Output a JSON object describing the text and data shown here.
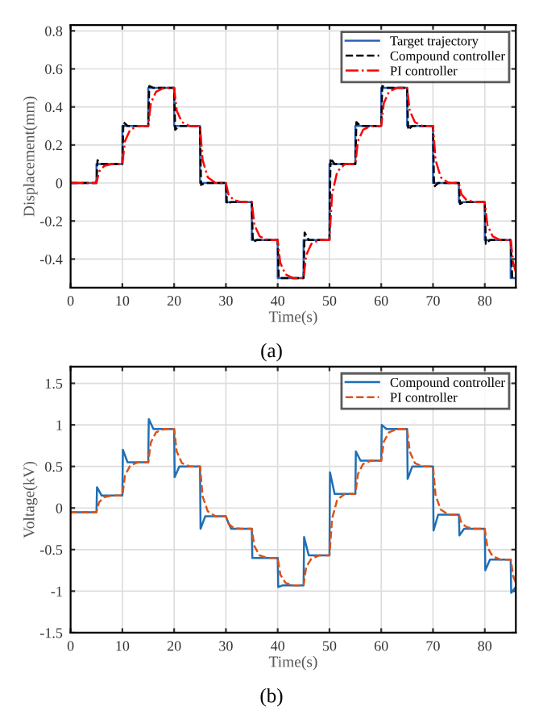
{
  "chart_data": [
    {
      "type": "line",
      "xlabel": "Time(s)",
      "ylabel": "Displacement(mm)",
      "xlim": [
        0,
        86
      ],
      "xticks": [
        0,
        10,
        20,
        30,
        40,
        50,
        60,
        70,
        80
      ],
      "ylim": [
        -0.55,
        0.83
      ],
      "yticks": [
        -0.4,
        -0.2,
        0,
        0.2,
        0.4,
        0.6,
        0.8
      ],
      "grid": true,
      "legend": "top right",
      "annotations": [
        "(a)"
      ],
      "series": [
        {
          "name": "Target trajectory",
          "color": "#2b5fb4",
          "line_style": "solid",
          "x": [
            0,
            5,
            5,
            10,
            10,
            15,
            15,
            20,
            20,
            25,
            25,
            30,
            30,
            35,
            35,
            40,
            40,
            45,
            45,
            50,
            50,
            55,
            55,
            60,
            60,
            65,
            65,
            70,
            70,
            75,
            75,
            80,
            80,
            85,
            85,
            86
          ],
          "values": [
            0,
            0,
            0.1,
            0.1,
            0.3,
            0.3,
            0.5,
            0.5,
            0.3,
            0.3,
            0,
            0,
            -0.1,
            -0.1,
            -0.3,
            -0.3,
            -0.5,
            -0.5,
            -0.3,
            -0.3,
            0.1,
            0.1,
            0.3,
            0.3,
            0.5,
            0.5,
            0.3,
            0.3,
            0,
            0,
            -0.1,
            -0.1,
            -0.3,
            -0.3,
            -0.5,
            -0.5
          ]
        },
        {
          "name": "Compound controller",
          "color": "#000000",
          "line_style": "dashed",
          "x": [
            0,
            5,
            5.2,
            6,
            10,
            10.2,
            11,
            15,
            15.2,
            16,
            20,
            20.2,
            21,
            25,
            25.2,
            26,
            30,
            30.2,
            31,
            35,
            35.2,
            36,
            40,
            40.2,
            41,
            45,
            45.2,
            46,
            50,
            50.2,
            51,
            55,
            55.2,
            56,
            60,
            60.2,
            61,
            65,
            65.2,
            66,
            70,
            70.2,
            71,
            75,
            75.2,
            76,
            80,
            80.2,
            81,
            85,
            85.3,
            86
          ],
          "values": [
            0,
            0,
            0.12,
            0.1,
            0.1,
            0.32,
            0.3,
            0.3,
            0.51,
            0.5,
            0.5,
            0.28,
            0.3,
            0.3,
            -0.01,
            0,
            0,
            -0.11,
            -0.1,
            -0.1,
            -0.31,
            -0.3,
            -0.3,
            -0.5,
            -0.5,
            -0.5,
            -0.26,
            -0.3,
            -0.3,
            0.13,
            0.1,
            0.1,
            0.32,
            0.3,
            0.3,
            0.51,
            0.5,
            0.5,
            0.28,
            0.3,
            0.3,
            -0.02,
            0,
            0,
            -0.11,
            -0.1,
            -0.1,
            -0.32,
            -0.3,
            -0.3,
            -0.5,
            -0.5
          ]
        },
        {
          "name": "PI controller",
          "color": "#ff0000",
          "line_style": "dashdot",
          "x": [
            0,
            5,
            5.5,
            6.5,
            8,
            10,
            10.5,
            11.5,
            13,
            15,
            15.5,
            16.5,
            18,
            20,
            20.5,
            21.5,
            23,
            25,
            25.5,
            26.5,
            28,
            30,
            30.5,
            31.5,
            33,
            35,
            35.5,
            36.5,
            38,
            40,
            40.5,
            41.5,
            43,
            45,
            45.5,
            46.5,
            48,
            50,
            50.5,
            51.5,
            53,
            55,
            55.5,
            56.5,
            58,
            60,
            60.5,
            61.5,
            63,
            65,
            65.5,
            66.5,
            68,
            70,
            70.5,
            71.5,
            73,
            75,
            75.5,
            76.5,
            78,
            80,
            80.5,
            81.5,
            83,
            85,
            85.5,
            86
          ],
          "values": [
            0,
            0,
            0.06,
            0.09,
            0.1,
            0.1,
            0.22,
            0.28,
            0.3,
            0.3,
            0.42,
            0.48,
            0.5,
            0.5,
            0.38,
            0.32,
            0.3,
            0.3,
            0.12,
            0.03,
            0,
            0,
            -0.06,
            -0.09,
            -0.1,
            -0.1,
            -0.22,
            -0.28,
            -0.3,
            -0.3,
            -0.42,
            -0.48,
            -0.5,
            -0.5,
            -0.38,
            -0.32,
            -0.3,
            -0.3,
            -0.06,
            0.06,
            0.1,
            0.1,
            0.22,
            0.28,
            0.3,
            0.3,
            0.42,
            0.48,
            0.5,
            0.5,
            0.38,
            0.32,
            0.3,
            0.3,
            0.12,
            0.03,
            0,
            0,
            -0.06,
            -0.09,
            -0.1,
            -0.1,
            -0.22,
            -0.28,
            -0.3,
            -0.3,
            -0.42,
            -0.47
          ]
        }
      ]
    },
    {
      "type": "line",
      "xlabel": "Time(s)",
      "ylabel": "Voltage(kV)",
      "xlim": [
        0,
        86
      ],
      "xticks": [
        0,
        10,
        20,
        30,
        40,
        50,
        60,
        70,
        80
      ],
      "ylim": [
        -1.5,
        1.7
      ],
      "yticks": [
        -1.5,
        -1,
        -0.5,
        0,
        0.5,
        1,
        1.5
      ],
      "grid": true,
      "legend": "top right",
      "annotations": [
        "(b)"
      ],
      "series": [
        {
          "name": "Compound controller",
          "color": "#1f6fb5",
          "line_style": "solid",
          "x": [
            0,
            5,
            5.1,
            6,
            10,
            10.1,
            11,
            15,
            15.1,
            16,
            20,
            20.1,
            21,
            25,
            25.1,
            26,
            30,
            30.1,
            31,
            35,
            35.1,
            36,
            40,
            40.1,
            41,
            45,
            45.1,
            46,
            50,
            50.1,
            51,
            55,
            55.1,
            56,
            60,
            60.1,
            61,
            65,
            65.1,
            66,
            70,
            70.1,
            71,
            75,
            75.1,
            76,
            80,
            80.1,
            81,
            85,
            85.1,
            86
          ],
          "values": [
            -0.05,
            -0.05,
            0.25,
            0.15,
            0.15,
            0.7,
            0.55,
            0.55,
            1.07,
            0.95,
            0.95,
            0.37,
            0.5,
            0.5,
            -0.25,
            -0.1,
            -0.1,
            -0.12,
            -0.25,
            -0.25,
            -0.6,
            -0.6,
            -0.6,
            -0.95,
            -0.93,
            -0.93,
            -0.35,
            -0.57,
            -0.57,
            0.43,
            0.17,
            0.17,
            0.68,
            0.57,
            0.57,
            1.0,
            0.95,
            0.95,
            0.35,
            0.5,
            0.5,
            -0.27,
            -0.08,
            -0.08,
            -0.33,
            -0.25,
            -0.25,
            -0.75,
            -0.62,
            -0.62,
            -1.02,
            -0.95
          ]
        },
        {
          "name": "PI controller",
          "color": "#d95319",
          "line_style": "dashed",
          "x": [
            0,
            5,
            5.5,
            6.5,
            8,
            10,
            10.5,
            11.5,
            13,
            15,
            15.5,
            16.5,
            18,
            20,
            20.5,
            21.5,
            23,
            25,
            25.5,
            26.5,
            28,
            30,
            30.5,
            31.5,
            33,
            35,
            35.5,
            36.5,
            38,
            40,
            40.5,
            41.5,
            43,
            45,
            45.5,
            46.5,
            48,
            50,
            50.5,
            51.5,
            53,
            55,
            55.5,
            56.5,
            58,
            60,
            60.5,
            61.5,
            63,
            65,
            65.5,
            66.5,
            68,
            70,
            70.5,
            71.5,
            73,
            75,
            75.5,
            76.5,
            78,
            80,
            80.5,
            81.5,
            83,
            85,
            85.5,
            86
          ],
          "values": [
            -0.05,
            -0.05,
            0.07,
            0.13,
            0.15,
            0.15,
            0.39,
            0.51,
            0.55,
            0.55,
            0.79,
            0.91,
            0.95,
            0.95,
            0.68,
            0.54,
            0.5,
            0.5,
            0.14,
            -0.04,
            -0.1,
            -0.1,
            -0.19,
            -0.24,
            -0.25,
            -0.25,
            -0.46,
            -0.57,
            -0.6,
            -0.6,
            -0.8,
            -0.9,
            -0.93,
            -0.93,
            -0.71,
            -0.61,
            -0.57,
            -0.57,
            -0.13,
            0.1,
            0.17,
            0.17,
            0.41,
            0.53,
            0.57,
            0.57,
            0.8,
            0.91,
            0.95,
            0.95,
            0.68,
            0.54,
            0.5,
            0.5,
            0.15,
            -0.02,
            -0.08,
            -0.08,
            -0.18,
            -0.23,
            -0.25,
            -0.25,
            -0.47,
            -0.58,
            -0.62,
            -0.62,
            -0.82,
            -0.9
          ]
        }
      ]
    }
  ]
}
